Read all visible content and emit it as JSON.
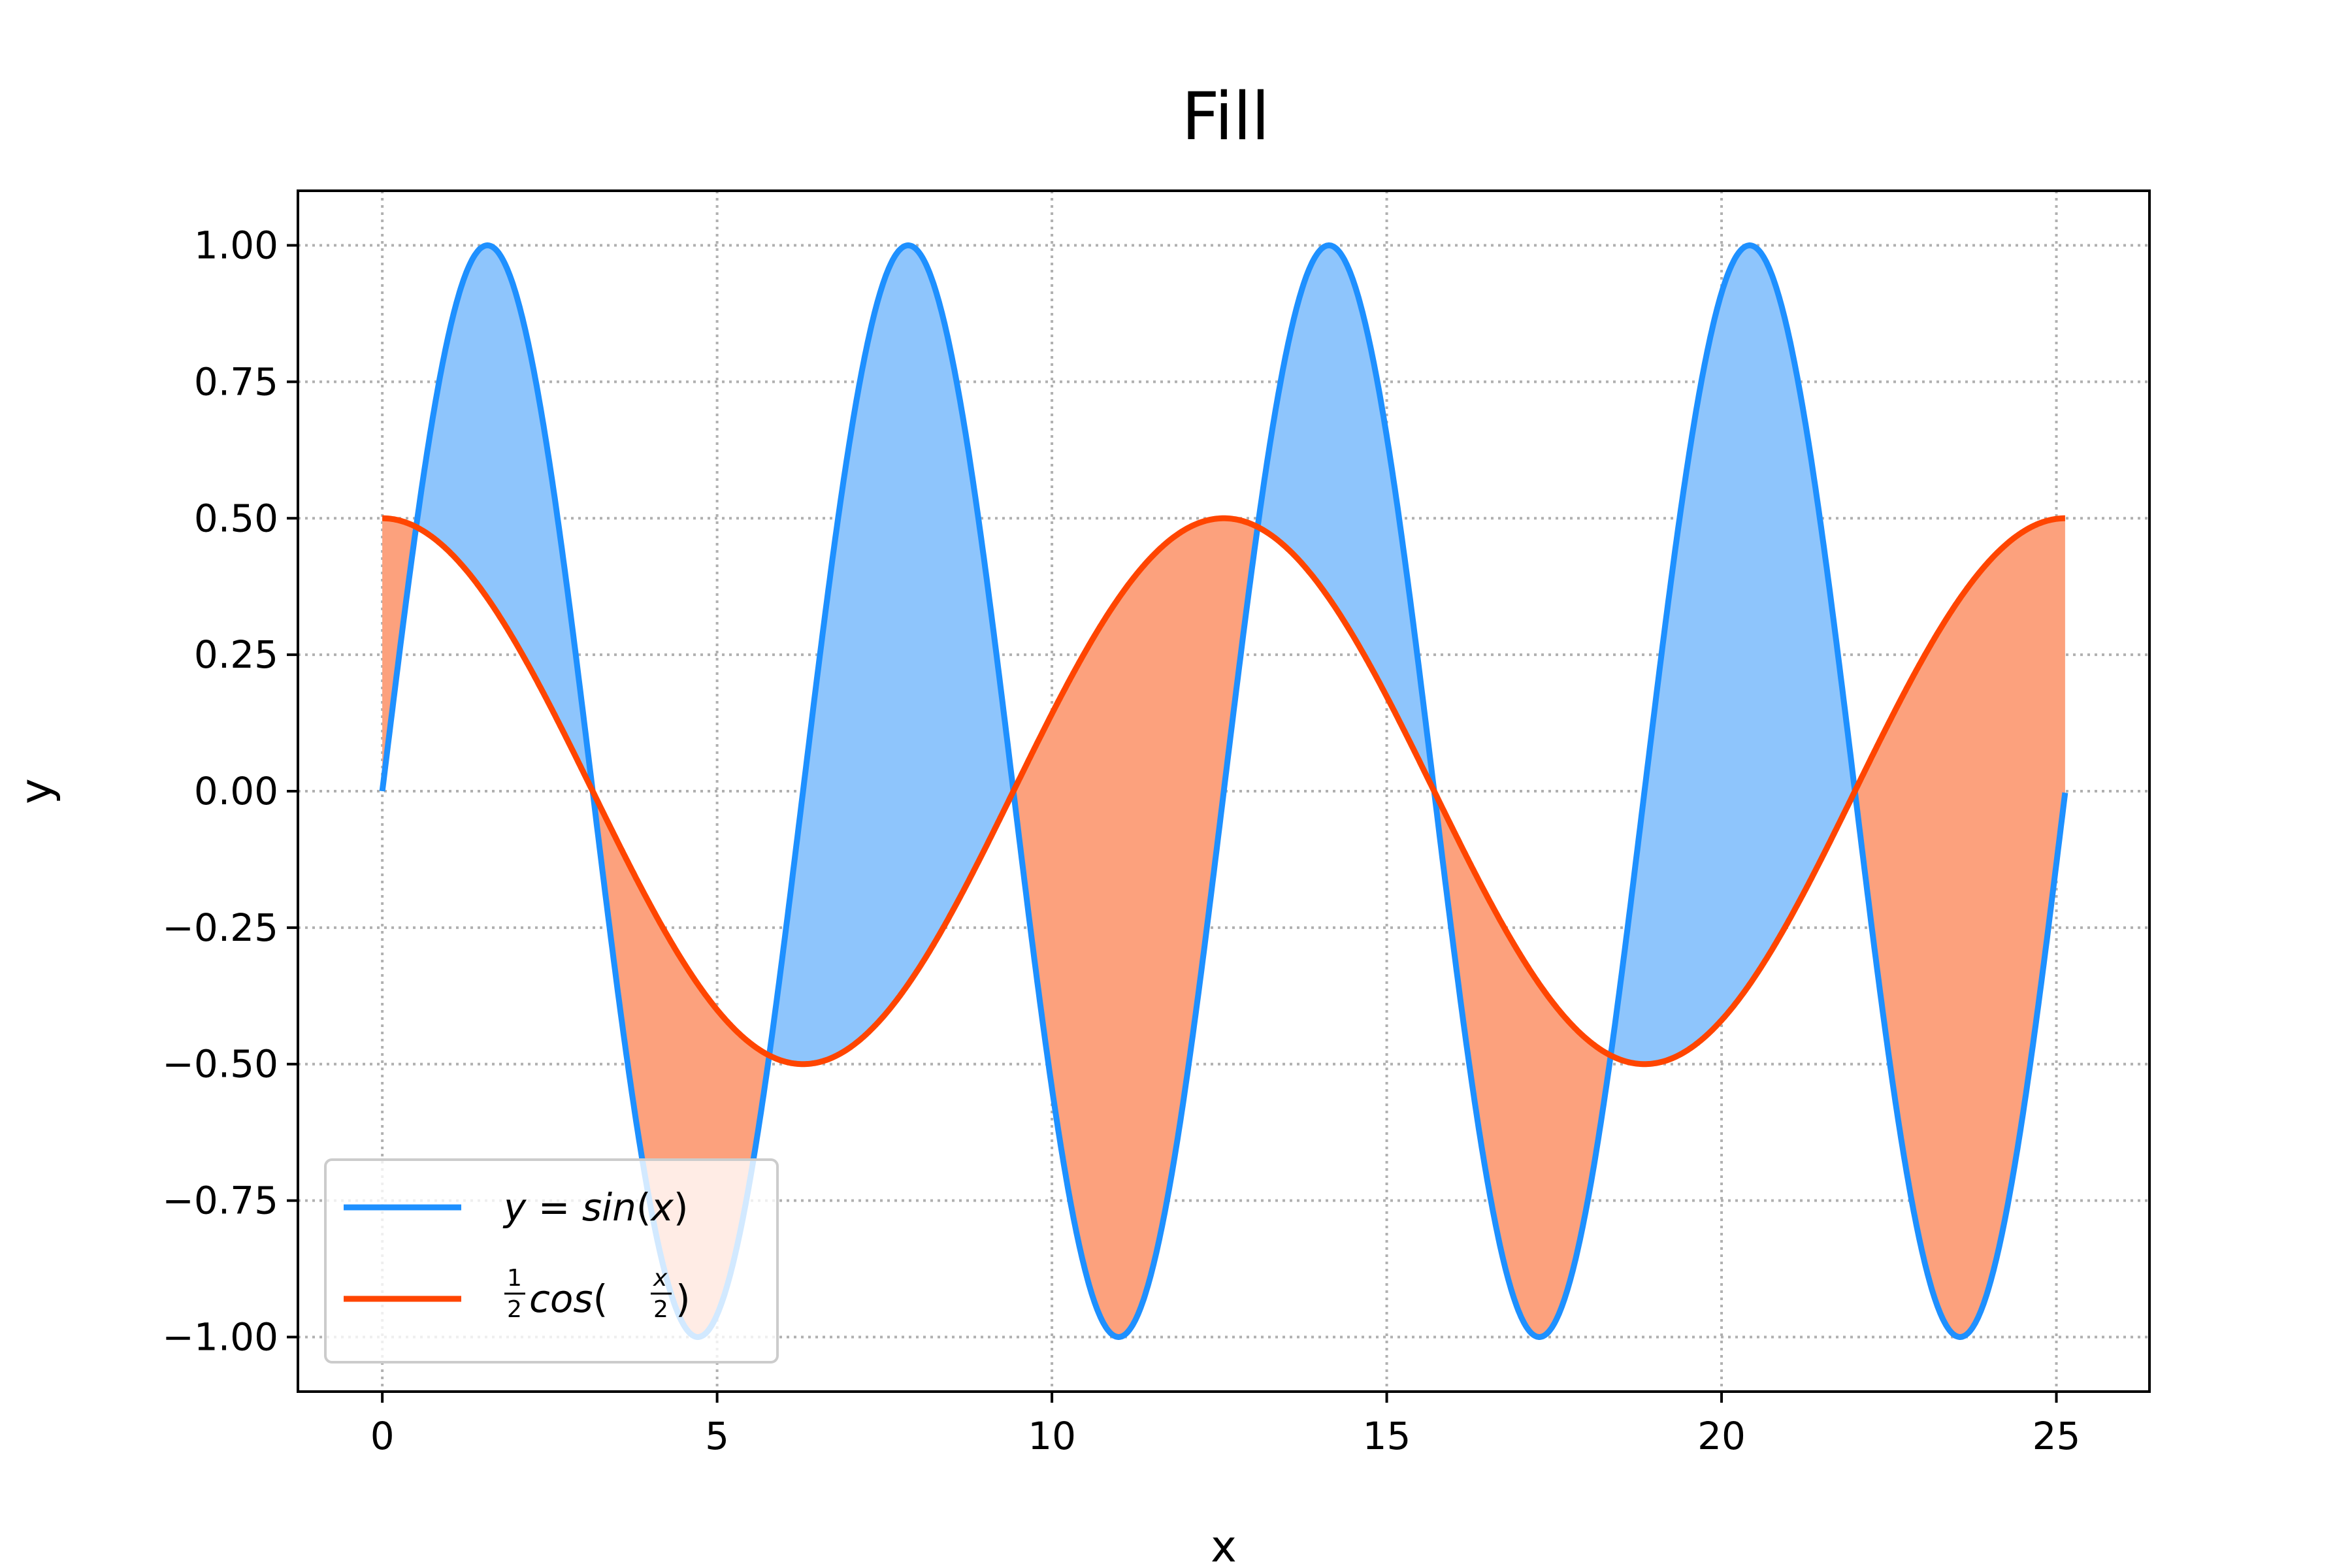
{
  "chart_data": {
    "type": "area",
    "title": "Fill",
    "xlabel": "x",
    "ylabel": "y",
    "xlim": [
      -1.26,
      26.39
    ],
    "ylim": [
      -1.1,
      1.1
    ],
    "x_ticks": [
      0,
      5,
      10,
      15,
      20,
      25
    ],
    "x_tick_labels": [
      "0",
      "5",
      "10",
      "15",
      "20",
      "25"
    ],
    "y_ticks": [
      1.0,
      0.75,
      0.5,
      0.25,
      0.0,
      -0.25,
      -0.5,
      -0.75,
      -1.0
    ],
    "y_tick_labels": [
      "1.00",
      "0.75",
      "0.50",
      "0.25",
      "0.00",
      "−0.25",
      "−0.50",
      "−0.75",
      "−1.00"
    ],
    "grid": true,
    "legend_position": "lower-left",
    "x_range": [
      0,
      25.13
    ],
    "series": [
      {
        "name": "y = sin(x)",
        "color": "#1e90ff",
        "x": [
          0,
          1.571,
          3.142,
          4.712,
          6.283,
          7.854,
          9.425,
          10.996,
          12.566,
          14.137,
          15.708,
          17.279,
          18.85,
          20.42,
          21.991,
          23.562,
          25.133
        ],
        "y": [
          0,
          1.0,
          0,
          -1.0,
          0,
          1.0,
          0,
          -1.0,
          0,
          1.0,
          0,
          -1.0,
          0,
          1.0,
          0,
          -1.0,
          0
        ]
      },
      {
        "name": "1/2 cos(x/2)",
        "color": "#ff4500",
        "x": [
          0,
          3.142,
          6.283,
          9.425,
          12.566,
          15.708,
          18.85,
          21.991,
          25.133
        ],
        "y": [
          0.5,
          0,
          -0.5,
          0,
          0.5,
          0,
          -0.5,
          0,
          0.5
        ]
      }
    ],
    "fill_between": {
      "where_sin_above": {
        "color": "#8ec5fc"
      },
      "where_cos_above": {
        "color": "#fca17d"
      }
    }
  }
}
